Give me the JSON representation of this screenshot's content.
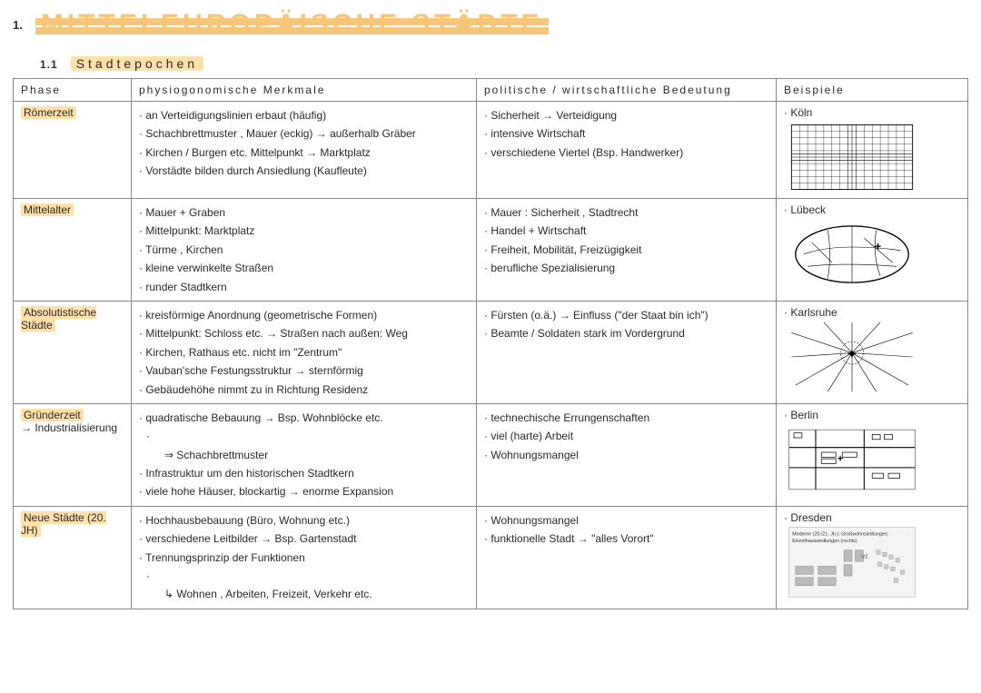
{
  "heading": {
    "number": "1.",
    "title": "MITTELEUROPÄISCHE STÄDTE"
  },
  "subheading": {
    "number": "1.1",
    "title": "Stadtepochen"
  },
  "columns": [
    "Phase",
    "physiogonomische  Merkmale",
    "politische / wirtschaftliche  Bedeutung",
    "Beispiele"
  ],
  "rows": [
    {
      "phase": "Römerzeit",
      "phase_extra": "",
      "merkmale": [
        "an Verteidigungslinien  erbaut (häufig)",
        "Schachbrettmuster , Mauer (eckig) → außerhalb Gräber",
        "Kirchen / Burgen etc. Mittelpunkt  → Marktplatz",
        "Vorstädte  bilden durch Ansiedlung (Kaufleute)"
      ],
      "bedeutung": [
        "Sicherheit → Verteidigung",
        "intensive Wirtschaft",
        "verschiedene Viertel (Bsp. Handwerker)"
      ],
      "beispiel": "Köln",
      "sketch": "grid"
    },
    {
      "phase": "Mittelalter",
      "phase_extra": "",
      "merkmale": [
        "Mauer + Graben",
        "Mittelpunkt:  Marktplatz",
        "Türme , Kirchen",
        "kleine verwinkelte Straßen",
        "runder Stadtkern"
      ],
      "bedeutung": [
        "Mauer : Sicherheit , Stadtrecht",
        "Handel + Wirtschaft",
        "Freiheit, Mobilität, Freizügigkeit",
        "berufliche  Spezialisierung"
      ],
      "beispiel": "Lübeck",
      "sketch": "oval"
    },
    {
      "phase": "Absolutistische Städte",
      "phase_extra": "",
      "merkmale": [
        "kreisförmige Anordnung  (geometrische Formen)",
        "Mittelpunkt: Schloss etc. → Straßen nach außen: Weg",
        "Kirchen, Rathaus etc.  nicht im \"Zentrum\"",
        "Vauban'sche Festungsstruktur → sternförmig",
        "Gebäudehöhe nimmt zu in Richtung Residenz"
      ],
      "bedeutung": [
        "Fürsten (o.ä.) → Einfluss   (\"der Staat bin ich\")",
        "Beamte / Soldaten  stark im Vordergrund"
      ],
      "beispiel": "Karlsruhe",
      "sketch": "radial"
    },
    {
      "phase": "Gründerzeit",
      "phase_extra": "→ Industrialisierung",
      "merkmale": [
        "quadratische Bebauung → Bsp. Wohnblöcke etc.",
        "⇒ Schachbrettmuster",
        "Infrastruktur um den historischen Stadtkern",
        "viele hohe Häuser, blockartig → enorme Expansion"
      ],
      "bedeutung": [
        "technechische Errungenschaften",
        "viel (harte) Arbeit",
        "Wohnungsmangel"
      ],
      "beispiel": "Berlin",
      "sketch": "blocks"
    },
    {
      "phase": "Neue Städte  (20. JH)",
      "phase_extra": "",
      "merkmale": [
        "Hochhausbebauung  (Büro, Wohnung etc.)",
        "verschiedene Leitbilder → Bsp. Gartenstadt",
        "Trennungsprinzip der Funktionen",
        "↳ Wohnen , Arbeiten, Freizeit, Verkehr etc."
      ],
      "bedeutung": [
        "Wohnungsmangel",
        "funktionelle Stadt → \"alles Vorort\""
      ],
      "beispiel": "Dresden",
      "sketch": "modern"
    }
  ],
  "colors": {
    "highlight": "#ffe0a8",
    "title": "#f6c67a",
    "border": "#888888",
    "text": "#2a2a2a"
  }
}
